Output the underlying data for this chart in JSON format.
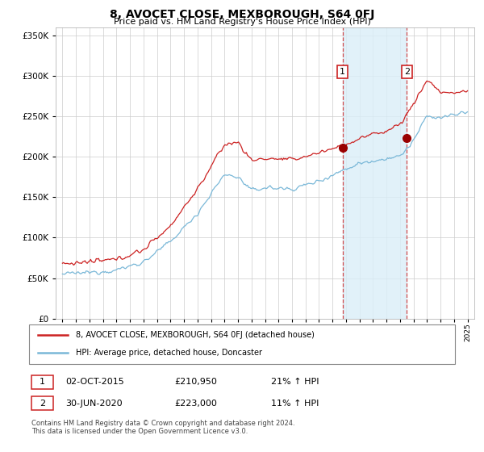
{
  "title": "8, AVOCET CLOSE, MEXBOROUGH, S64 0FJ",
  "subtitle": "Price paid vs. HM Land Registry's House Price Index (HPI)",
  "legend_line1": "8, AVOCET CLOSE, MEXBOROUGH, S64 0FJ (detached house)",
  "legend_line2": "HPI: Average price, detached house, Doncaster",
  "sale1_date": "02-OCT-2015",
  "sale1_price": "£210,950",
  "sale1_hpi": "21% ↑ HPI",
  "sale2_date": "30-JUN-2020",
  "sale2_price": "£223,000",
  "sale2_hpi": "11% ↑ HPI",
  "footer": "Contains HM Land Registry data © Crown copyright and database right 2024.\nThis data is licensed under the Open Government Licence v3.0.",
  "hpi_color": "#7ab8d8",
  "price_color": "#cc2222",
  "marker_color": "#990000",
  "shade_color": "#daeef8",
  "vline_color": "#cc2222",
  "ylim": [
    0,
    360000
  ],
  "yticks": [
    0,
    50000,
    100000,
    150000,
    200000,
    250000,
    300000,
    350000
  ],
  "sale1_year": 2015.75,
  "sale2_year": 2020.5,
  "sale1_price_val": 210950,
  "sale2_price_val": 223000
}
